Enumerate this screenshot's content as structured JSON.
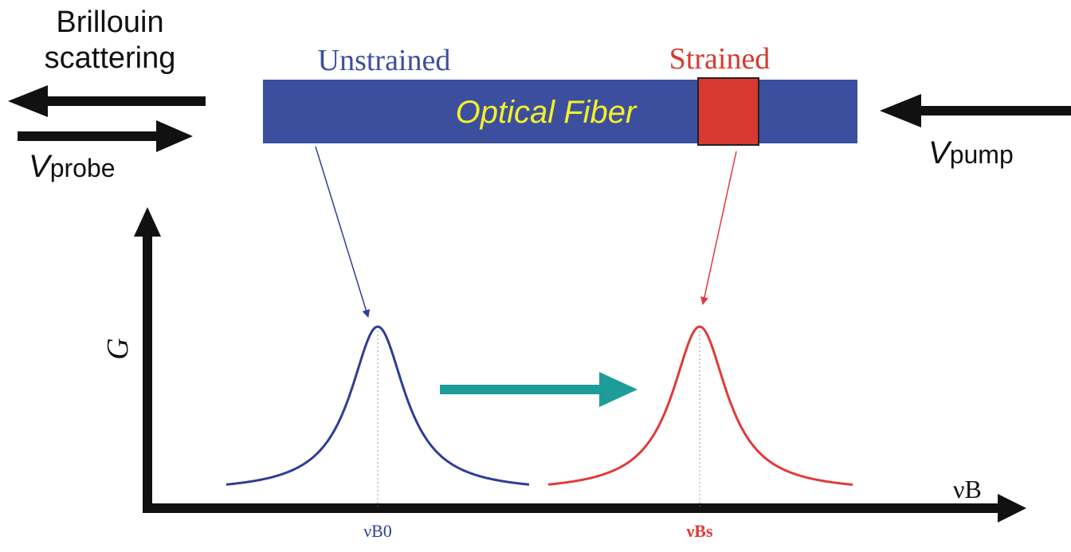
{
  "labels": {
    "brillouin_line1": "Brillouin",
    "brillouin_line2": "scattering",
    "probe_symbol": "V",
    "probe_subscript": "probe",
    "pump_symbol": "V",
    "pump_subscript": "pump",
    "unstrained": "Unstrained",
    "strained": "Strained",
    "fiber": "Optical Fiber",
    "y_axis": "G",
    "x_axis": "νB",
    "peak_unstrained": "νB0",
    "peak_strained": "νBs"
  },
  "colors": {
    "fiber": "#3b4f9e",
    "strained_section": "#d63a30",
    "unstrained_curve": "#2e3e94",
    "strained_curve": "#e03a3a",
    "shift_arrow": "#1e9c9a",
    "fiber_text": "#f5f02a",
    "arrows": "#111111"
  }
}
